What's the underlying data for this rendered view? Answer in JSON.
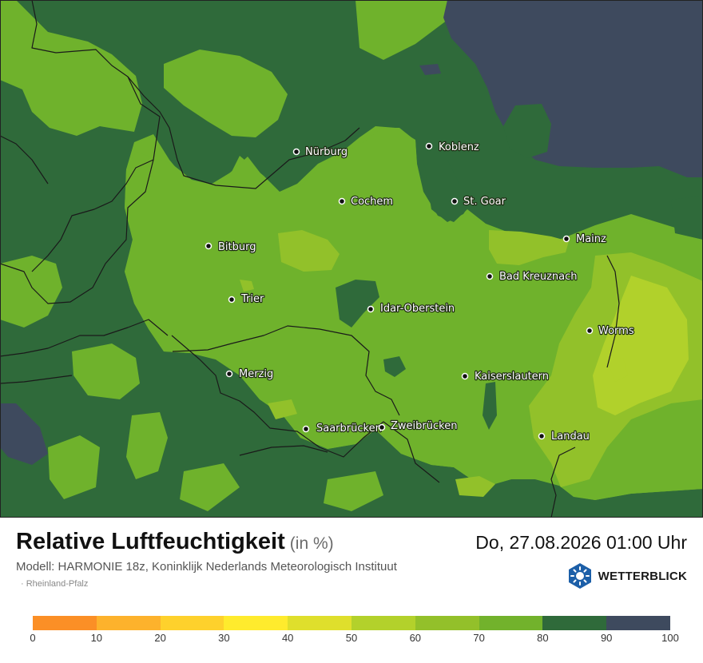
{
  "map": {
    "colors": {
      "c90": "#3e4a5e",
      "c80": "#2f6a3a",
      "c70": "#6fb22c",
      "c60": "#92c12a",
      "c50": "#b1d12b"
    },
    "cities": [
      {
        "name": "Nürburg"
      },
      {
        "name": "Koblenz"
      },
      {
        "name": "Cochem"
      },
      {
        "name": "St. Goar"
      },
      {
        "name": "Bitburg"
      },
      {
        "name": "Mainz"
      },
      {
        "name": "Bad Kreuznach"
      },
      {
        "name": "Trier"
      },
      {
        "name": "Idar-Oberstein"
      },
      {
        "name": "Worms"
      },
      {
        "name": "Merzig"
      },
      {
        "name": "Kaiserslautern"
      },
      {
        "name": "Saarbrücken"
      },
      {
        "name": "Zweibrücken"
      },
      {
        "name": "Landau"
      }
    ]
  },
  "header": {
    "title": "Relative Luftfeuchtigkeit",
    "unit": "(in %)",
    "datetime": "Do, 27.08.2026 01:00 Uhr",
    "model": "Modell: HARMONIE 18z, Koninklijk Nederlands Meteorologisch Instituut",
    "region": "· Rheinland-Pfalz",
    "brand": "WETTERBLICK",
    "brand_icon": "sun-icon"
  },
  "legend": {
    "colors": [
      "#fb8f26",
      "#fdb22c",
      "#fed12c",
      "#ffeb2d",
      "#dfdf2c",
      "#b3d12b",
      "#93c02a",
      "#72b22c",
      "#2f6a3a",
      "#3e4a5e"
    ],
    "ticks": [
      "0",
      "10",
      "20",
      "30",
      "40",
      "50",
      "60",
      "70",
      "80",
      "90",
      "100"
    ]
  }
}
